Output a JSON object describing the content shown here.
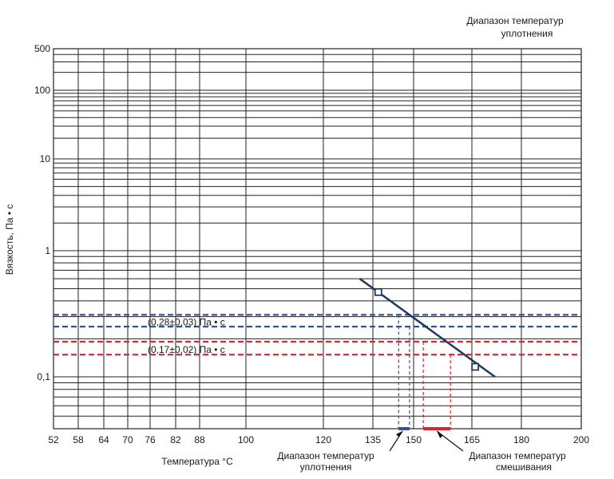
{
  "chart_data": {
    "type": "line",
    "title_lines": [
      "Диапазон температур",
      "уплотнения"
    ],
    "xlabel": "Температура °C",
    "ylabel": "Вязкость, Па • с",
    "xlim": [
      52,
      200
    ],
    "ylim": [
      0.04,
      500
    ],
    "y_scale": "log",
    "x_ticks": [
      52,
      58,
      64,
      70,
      76,
      82,
      88,
      100,
      120,
      135,
      150,
      165,
      180,
      200
    ],
    "y_ticks": [
      {
        "value": 500,
        "label": "500"
      },
      {
        "value": 100,
        "label": "100"
      },
      {
        "value": 10,
        "label": "10"
      },
      {
        "value": 1,
        "label": "1"
      },
      {
        "value": 0.1,
        "label": "0,1"
      }
    ],
    "grid": true,
    "series": [
      {
        "color": "#1f3a5f",
        "line_x": [
          131,
          172
        ],
        "line_y": [
          0.6,
          0.1
        ],
        "markers": [
          {
            "x": 137,
            "y": 0.47
          },
          {
            "x": 166,
            "y": 0.12
          }
        ]
      }
    ],
    "bands": [
      {
        "label": "(0,28±0,03) Па • с",
        "color": "#3a4fa0",
        "y_top": 0.31,
        "y_bottom": 0.25,
        "x_left": 144.5,
        "x_right": 148.5,
        "range_label_lines": [
          "Диапазон температур",
          "уплотнения"
        ]
      },
      {
        "label": "(0,17±0,02) Па • с",
        "color": "#e0222e",
        "y_top": 0.19,
        "y_bottom": 0.15,
        "x_left": 152.5,
        "x_right": 159.5,
        "range_label_lines": [
          "Диапазон температур",
          "смешивания"
        ]
      }
    ]
  }
}
